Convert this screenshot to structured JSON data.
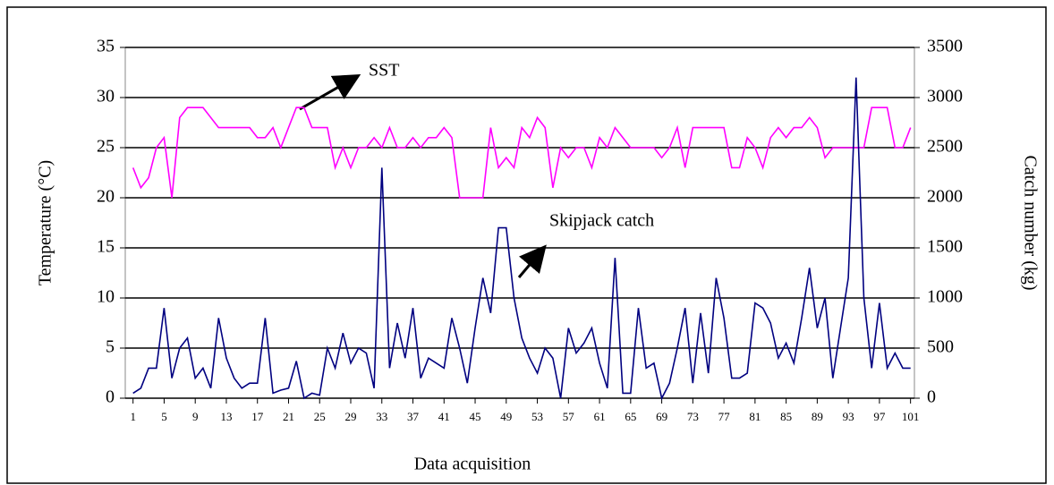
{
  "chart_data": {
    "type": "line",
    "xlabel": "Data acquisition",
    "ylabel": "Temperature (°C)",
    "y2label": "Catch number (kg)",
    "x": [
      1,
      2,
      3,
      4,
      5,
      6,
      7,
      8,
      9,
      10,
      11,
      12,
      13,
      14,
      15,
      16,
      17,
      18,
      19,
      20,
      21,
      22,
      23,
      24,
      25,
      26,
      27,
      28,
      29,
      30,
      31,
      32,
      33,
      34,
      35,
      36,
      37,
      38,
      39,
      40,
      41,
      42,
      43,
      44,
      45,
      46,
      47,
      48,
      49,
      50,
      51,
      52,
      53,
      54,
      55,
      56,
      57,
      58,
      59,
      60,
      61,
      62,
      63,
      64,
      65,
      66,
      67,
      68,
      69,
      70,
      71,
      72,
      73,
      74,
      75,
      76,
      77,
      78,
      79,
      80,
      81,
      82,
      83,
      84,
      85,
      86,
      87,
      88,
      89,
      90,
      91,
      92,
      93,
      94,
      95,
      96,
      97,
      98,
      99,
      100,
      101
    ],
    "xlim": [
      0,
      101.5
    ],
    "xticks": [
      1,
      5,
      9,
      13,
      17,
      21,
      25,
      29,
      33,
      37,
      41,
      45,
      49,
      53,
      57,
      61,
      65,
      69,
      73,
      77,
      81,
      85,
      89,
      93,
      97,
      101
    ],
    "ylim": [
      0,
      35
    ],
    "yticks": [
      0,
      5,
      10,
      15,
      20,
      25,
      30,
      35
    ],
    "y2lim": [
      0,
      3500
    ],
    "y2ticks": [
      0,
      500,
      1000,
      1500,
      2000,
      2500,
      3000,
      3500
    ],
    "grid": true,
    "series": [
      {
        "name": "SST",
        "color": "#ff00ff",
        "values": [
          23,
          21,
          22,
          25,
          26,
          20,
          28,
          29,
          29,
          29,
          28,
          27,
          27,
          27,
          27,
          27,
          26,
          26,
          27,
          25,
          27,
          29,
          29,
          27,
          27,
          27,
          23,
          25,
          23,
          25,
          25,
          26,
          25,
          27,
          25,
          25,
          26,
          25,
          26,
          26,
          27,
          26,
          20,
          20,
          20,
          20,
          27,
          23,
          24,
          23,
          27,
          26,
          28,
          27,
          21,
          25,
          24,
          25,
          25,
          23,
          26,
          25,
          27,
          26,
          25,
          25,
          25,
          25,
          24,
          25,
          27,
          23,
          27,
          27,
          27,
          27,
          27,
          23,
          23,
          26,
          25,
          23,
          26,
          27,
          26,
          27,
          27,
          28,
          27,
          24,
          25,
          25,
          25,
          25,
          25,
          29,
          29,
          29,
          25,
          25,
          27
        ]
      },
      {
        "name": "Skipjack catch",
        "color": "#000080",
        "axis": "y2",
        "values": [
          50,
          100,
          300,
          300,
          900,
          200,
          500,
          600,
          200,
          300,
          100,
          800,
          400,
          200,
          100,
          150,
          150,
          800,
          50,
          80,
          100,
          370,
          0,
          50,
          30,
          500,
          300,
          650,
          350,
          500,
          450,
          100,
          2300,
          300,
          750,
          400,
          900,
          200,
          400,
          350,
          300,
          800,
          500,
          150,
          700,
          1200,
          850,
          1700,
          1700,
          1000,
          600,
          400,
          250,
          500,
          400,
          0,
          700,
          450,
          550,
          700,
          350,
          100,
          1400,
          50,
          50,
          900,
          300,
          350,
          0,
          150,
          500,
          900,
          150,
          850,
          250,
          1200,
          800,
          200,
          200,
          250,
          950,
          900,
          750,
          400,
          550,
          350,
          800,
          1300,
          700,
          1000,
          200,
          700,
          1200,
          3200,
          1000,
          300,
          950,
          300,
          450,
          300,
          300
        ]
      }
    ]
  }
}
